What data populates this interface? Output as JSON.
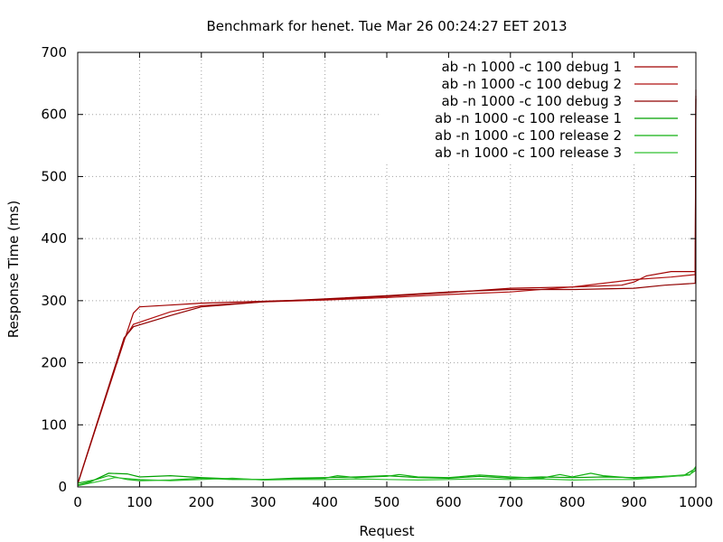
{
  "chart_data": {
    "type": "line",
    "title": "Benchmark for henet. Tue Mar 26 00:24:27 EET 2013",
    "xlabel": "Request",
    "ylabel": "Response Time (ms)",
    "xlim": [
      0,
      1000
    ],
    "ylim": [
      0,
      700
    ],
    "xticks": [
      "0",
      "100",
      "200",
      "300",
      "400",
      "500",
      "600",
      "700",
      "800",
      "900",
      "1000"
    ],
    "yticks": [
      "0",
      "100",
      "200",
      "300",
      "400",
      "500",
      "600",
      "700"
    ],
    "grid": true,
    "legend_position": "top-right",
    "series": [
      {
        "name": "ab -n 1000 -c 100 debug 1",
        "color": "#a00000",
        "points": [
          [
            0,
            5
          ],
          [
            75,
            235
          ],
          [
            90,
            280
          ],
          [
            100,
            290
          ],
          [
            150,
            293
          ],
          [
            200,
            296
          ],
          [
            300,
            299
          ],
          [
            400,
            302
          ],
          [
            500,
            307
          ],
          [
            600,
            313
          ],
          [
            700,
            320
          ],
          [
            800,
            322
          ],
          [
            880,
            325
          ],
          [
            900,
            330
          ],
          [
            920,
            340
          ],
          [
            960,
            347
          ],
          [
            999,
            347
          ],
          [
            1000,
            640
          ]
        ]
      },
      {
        "name": "ab -n 1000 -c 100 debug 2",
        "color": "#b01010",
        "points": [
          [
            0,
            5
          ],
          [
            75,
            238
          ],
          [
            90,
            262
          ],
          [
            150,
            282
          ],
          [
            200,
            292
          ],
          [
            300,
            298
          ],
          [
            400,
            301
          ],
          [
            500,
            305
          ],
          [
            600,
            310
          ],
          [
            700,
            314
          ],
          [
            800,
            322
          ],
          [
            900,
            334
          ],
          [
            960,
            338
          ],
          [
            999,
            342
          ],
          [
            1000,
            630
          ]
        ]
      },
      {
        "name": "ab -n 1000 -c 100 debug 3",
        "color": "#900000",
        "points": [
          [
            0,
            5
          ],
          [
            75,
            240
          ],
          [
            90,
            258
          ],
          [
            150,
            276
          ],
          [
            200,
            290
          ],
          [
            300,
            298
          ],
          [
            400,
            303
          ],
          [
            500,
            308
          ],
          [
            600,
            314
          ],
          [
            700,
            318
          ],
          [
            800,
            318
          ],
          [
            900,
            320
          ],
          [
            950,
            325
          ],
          [
            999,
            328
          ],
          [
            1000,
            625
          ]
        ]
      },
      {
        "name": "ab -n 1000 -c 100 release 1",
        "color": "#00a000",
        "points": [
          [
            0,
            3
          ],
          [
            20,
            8
          ],
          [
            50,
            22
          ],
          [
            80,
            21
          ],
          [
            100,
            16
          ],
          [
            150,
            18
          ],
          [
            200,
            15
          ],
          [
            250,
            13
          ],
          [
            300,
            12
          ],
          [
            350,
            14
          ],
          [
            400,
            15
          ],
          [
            450,
            16
          ],
          [
            500,
            18
          ],
          [
            550,
            15
          ],
          [
            600,
            14
          ],
          [
            650,
            17
          ],
          [
            700,
            14
          ],
          [
            750,
            16
          ],
          [
            800,
            15
          ],
          [
            850,
            16
          ],
          [
            900,
            15
          ],
          [
            950,
            17
          ],
          [
            980,
            18
          ],
          [
            1000,
            30
          ]
        ]
      },
      {
        "name": "ab -n 1000 -c 100 release 2",
        "color": "#10b010",
        "points": [
          [
            0,
            6
          ],
          [
            30,
            12
          ],
          [
            50,
            18
          ],
          [
            80,
            12
          ],
          [
            100,
            10
          ],
          [
            150,
            11
          ],
          [
            200,
            14
          ],
          [
            250,
            12
          ],
          [
            300,
            12
          ],
          [
            350,
            13
          ],
          [
            400,
            14
          ],
          [
            420,
            18
          ],
          [
            450,
            15
          ],
          [
            500,
            17
          ],
          [
            520,
            20
          ],
          [
            550,
            16
          ],
          [
            600,
            15
          ],
          [
            650,
            19
          ],
          [
            700,
            16
          ],
          [
            750,
            14
          ],
          [
            780,
            20
          ],
          [
            800,
            16
          ],
          [
            830,
            22
          ],
          [
            850,
            18
          ],
          [
            900,
            14
          ],
          [
            950,
            17
          ],
          [
            990,
            20
          ],
          [
            1000,
            27
          ]
        ]
      },
      {
        "name": "ab -n 1000 -c 100 release 3",
        "color": "#30c030",
        "points": [
          [
            0,
            2
          ],
          [
            40,
            10
          ],
          [
            60,
            15
          ],
          [
            100,
            12
          ],
          [
            150,
            10
          ],
          [
            200,
            12
          ],
          [
            250,
            14
          ],
          [
            300,
            11
          ],
          [
            350,
            12
          ],
          [
            400,
            12
          ],
          [
            450,
            13
          ],
          [
            500,
            12
          ],
          [
            550,
            11
          ],
          [
            600,
            12
          ],
          [
            650,
            13
          ],
          [
            700,
            12
          ],
          [
            750,
            13
          ],
          [
            800,
            11
          ],
          [
            850,
            12
          ],
          [
            900,
            12
          ],
          [
            950,
            16
          ],
          [
            990,
            19
          ],
          [
            1000,
            33
          ]
        ]
      }
    ]
  }
}
